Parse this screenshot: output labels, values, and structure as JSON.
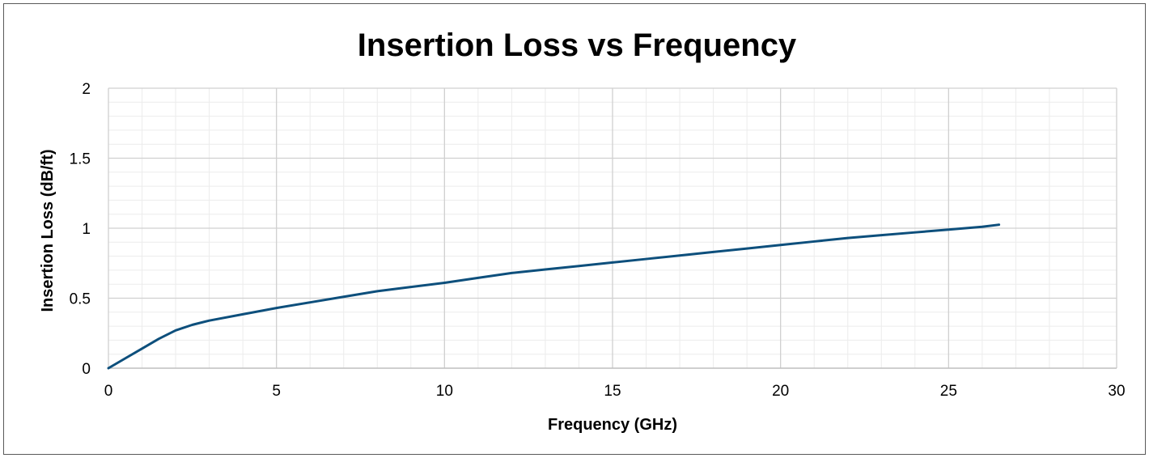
{
  "chart_data": {
    "type": "line",
    "title": "Insertion Loss vs Frequency",
    "xlabel": "Frequency (GHz)",
    "ylabel": "Insertion Loss (dB/ft)",
    "xlim": [
      0,
      30
    ],
    "ylim": [
      0,
      2
    ],
    "x_ticks": [
      "0",
      "5",
      "10",
      "15",
      "20",
      "25",
      "30"
    ],
    "y_ticks": [
      "0",
      "0.5",
      "1",
      "1.5",
      "2"
    ],
    "grid": true,
    "legend": "none",
    "series": [
      {
        "color": "#0d4f7c",
        "x": [
          0,
          0.5,
          1,
          1.5,
          2,
          2.5,
          3,
          4,
          5,
          6,
          7,
          8,
          9,
          10,
          11,
          12,
          13,
          14,
          15,
          16,
          17,
          18,
          19,
          20,
          21,
          22,
          23,
          24,
          25,
          26,
          26.5
        ],
        "y": [
          0,
          0.07,
          0.14,
          0.21,
          0.27,
          0.31,
          0.34,
          0.385,
          0.43,
          0.47,
          0.51,
          0.55,
          0.58,
          0.61,
          0.645,
          0.68,
          0.705,
          0.73,
          0.755,
          0.78,
          0.805,
          0.83,
          0.855,
          0.88,
          0.905,
          0.93,
          0.95,
          0.97,
          0.99,
          1.01,
          1.025
        ]
      }
    ]
  }
}
